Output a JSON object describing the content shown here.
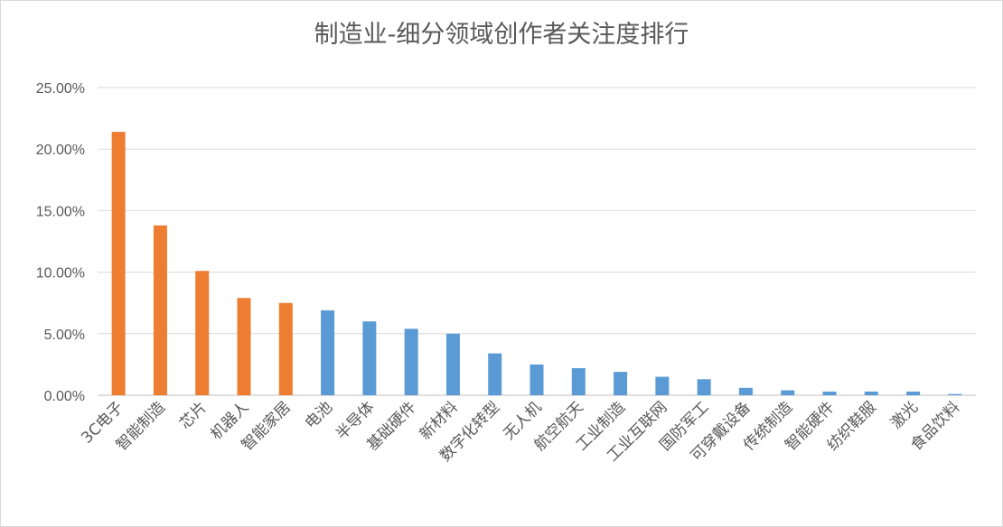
{
  "chart_data": {
    "type": "bar",
    "title": "制造业-细分领域创作者关注度排行",
    "xlabel": "",
    "ylabel": "",
    "ylim": [
      0,
      25
    ],
    "yticks": [
      "0.00%",
      "5.00%",
      "10.00%",
      "15.00%",
      "20.00%",
      "25.00%"
    ],
    "grid": true,
    "categories": [
      "3C电子",
      "智能制造",
      "芯片",
      "机器人",
      "智能家居",
      "电池",
      "半导体",
      "基础硬件",
      "新材料",
      "数字化转型",
      "无人机",
      "航空航天",
      "工业制造",
      "工业互联网",
      "国防军工",
      "可穿戴设备",
      "传统制造",
      "智能硬件",
      "纺织鞋服",
      "激光",
      "食品饮料"
    ],
    "values": [
      21.4,
      13.8,
      10.1,
      7.9,
      7.5,
      6.9,
      6.0,
      5.4,
      5.0,
      3.4,
      2.5,
      2.2,
      1.9,
      1.5,
      1.3,
      0.6,
      0.4,
      0.3,
      0.3,
      0.3,
      0.1
    ],
    "colors": {
      "highlight": "#ed7d31",
      "default": "#5b9bd5"
    },
    "highlight_count": 5
  }
}
